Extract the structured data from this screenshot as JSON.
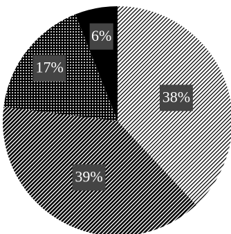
{
  "chart_data": {
    "type": "pie",
    "values": [
      38,
      39,
      17,
      6
    ],
    "value_labels": [
      "38%",
      "39%",
      "17%",
      "6%"
    ]
  }
}
